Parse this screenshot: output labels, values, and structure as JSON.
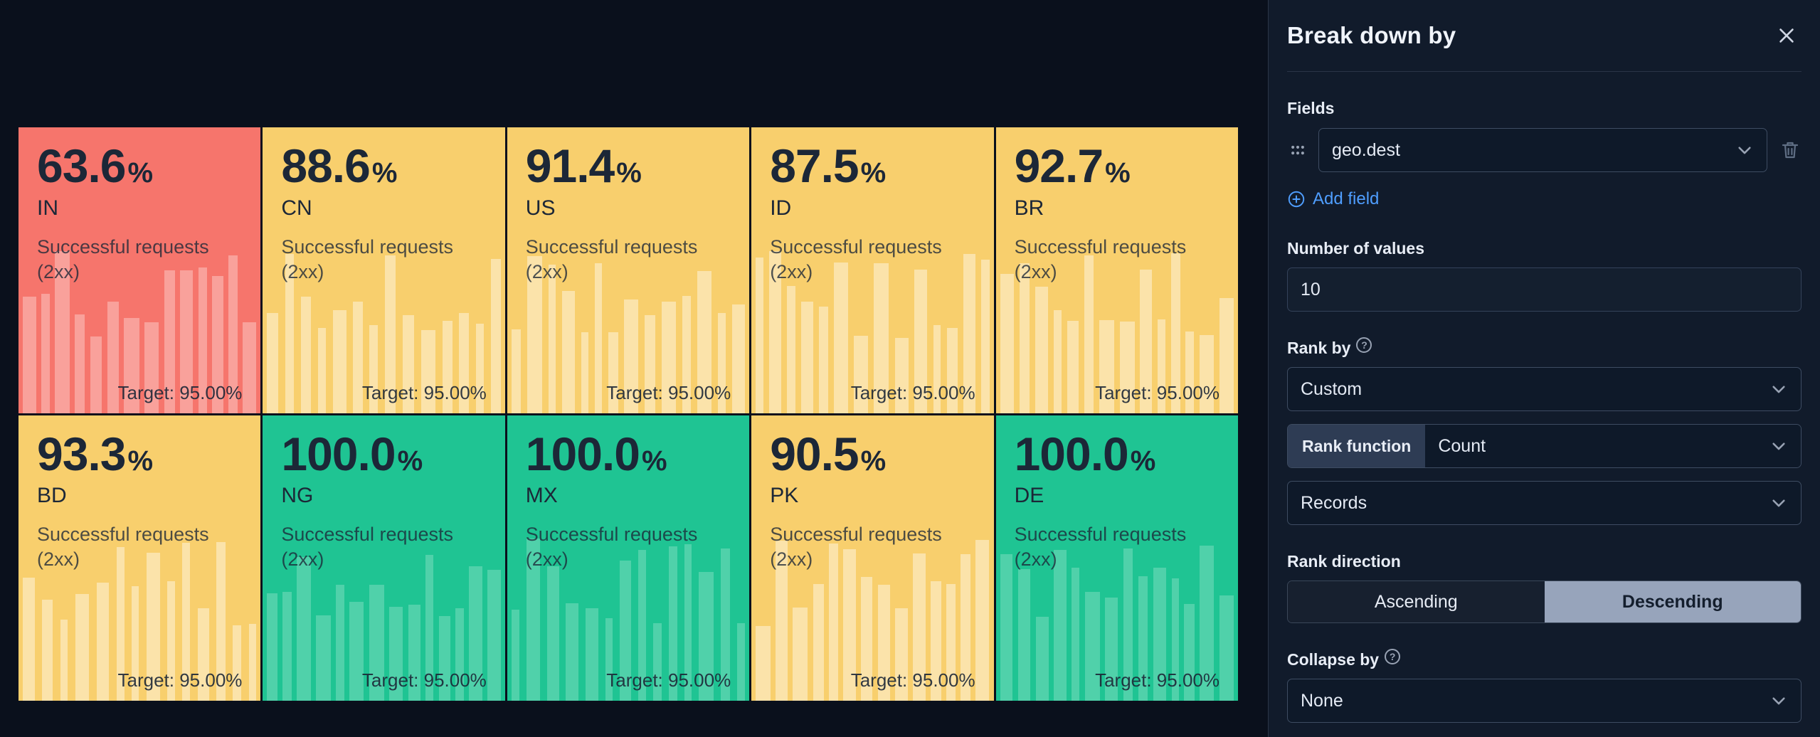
{
  "tiles": [
    {
      "value": "63.6",
      "unit": "%",
      "code": "IN",
      "subtitle": "Successful requests (2xx)",
      "target": "Target: 95.00%",
      "state": "danger"
    },
    {
      "value": "88.6",
      "unit": "%",
      "code": "CN",
      "subtitle": "Successful requests (2xx)",
      "target": "Target: 95.00%",
      "state": "warning"
    },
    {
      "value": "91.4",
      "unit": "%",
      "code": "US",
      "subtitle": "Successful requests (2xx)",
      "target": "Target: 95.00%",
      "state": "warning"
    },
    {
      "value": "87.5",
      "unit": "%",
      "code": "ID",
      "subtitle": "Successful requests (2xx)",
      "target": "Target: 95.00%",
      "state": "warning"
    },
    {
      "value": "92.7",
      "unit": "%",
      "code": "BR",
      "subtitle": "Successful requests (2xx)",
      "target": "Target: 95.00%",
      "state": "warning"
    },
    {
      "value": "93.3",
      "unit": "%",
      "code": "BD",
      "subtitle": "Successful requests (2xx)",
      "target": "Target: 95.00%",
      "state": "warning"
    },
    {
      "value": "100.0",
      "unit": "%",
      "code": "NG",
      "subtitle": "Successful requests (2xx)",
      "target": "Target: 95.00%",
      "state": "success"
    },
    {
      "value": "100.0",
      "unit": "%",
      "code": "MX",
      "subtitle": "Successful requests (2xx)",
      "target": "Target: 95.00%",
      "state": "success"
    },
    {
      "value": "90.5",
      "unit": "%",
      "code": "PK",
      "subtitle": "Successful requests (2xx)",
      "target": "Target: 95.00%",
      "state": "warning"
    },
    {
      "value": "100.0",
      "unit": "%",
      "code": "DE",
      "subtitle": "Successful requests (2xx)",
      "target": "Target: 95.00%",
      "state": "success"
    }
  ],
  "states": {
    "danger": {
      "bg": "#f6756c",
      "stripe": "rgba(255,255,255,0.32)"
    },
    "warning": {
      "bg": "#f8cf6d",
      "stripe": "rgba(255,255,255,0.42)"
    },
    "success": {
      "bg": "#1fc493",
      "stripe": "rgba(255,255,255,0.22)"
    }
  },
  "panel": {
    "title": "Break down by",
    "fields_label": "Fields",
    "field_value": "geo.dest",
    "add_field_label": "Add field",
    "number_of_values_label": "Number of values",
    "number_of_values_value": "10",
    "rank_by_label": "Rank by",
    "rank_by_value": "Custom",
    "rank_function_label": "Rank function",
    "rank_function_value": "Count",
    "rank_metric_value": "Records",
    "rank_direction_label": "Rank direction",
    "ascending_label": "Ascending",
    "descending_label": "Descending",
    "collapse_by_label": "Collapse by",
    "collapse_by_value": "None"
  },
  "colors": {
    "page_bg": "#0a101c",
    "flyout_bg": "#111b2b",
    "divider": "#2b3547",
    "control_bg": "#0e1929",
    "control_border": "#3e4c62",
    "accent_blue": "#4f9eff",
    "selected_button_bg": "#97a4bb",
    "selected_button_text": "#141e2d",
    "tile_text": "#1c2737",
    "muted_icon": "#98a2b3",
    "label_text": "#e8edf6"
  }
}
